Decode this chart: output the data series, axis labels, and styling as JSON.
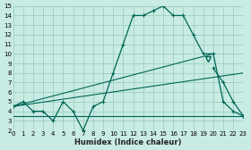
{
  "xlabel": "Humidex (Indice chaleur)",
  "bg_color": "#c8ebe4",
  "grid_color": "#9ecfbe",
  "line_color": "#006655",
  "xlim": [
    0,
    23
  ],
  "ylim": [
    2,
    15
  ],
  "xticks": [
    0,
    1,
    2,
    3,
    4,
    5,
    6,
    7,
    8,
    9,
    10,
    11,
    12,
    13,
    14,
    15,
    16,
    17,
    18,
    19,
    20,
    21,
    22,
    23
  ],
  "yticks": [
    2,
    3,
    4,
    5,
    6,
    7,
    8,
    9,
    10,
    11,
    12,
    13,
    14,
    15
  ],
  "main_line_x": [
    0,
    1,
    2,
    3,
    4,
    5,
    6,
    7,
    8,
    9,
    10,
    11,
    12,
    13,
    14,
    15,
    16,
    17,
    18,
    19,
    20,
    21,
    22,
    23
  ],
  "main_line_y": [
    4.5,
    5.0,
    4.0,
    4.0,
    3.0,
    5.0,
    4.0,
    2.0,
    4.5,
    5.0,
    8.0,
    11.0,
    14.0,
    14.0,
    14.5,
    15.0,
    14.0,
    14.0,
    12.0,
    10.0,
    10.0,
    5.0,
    4.0,
    3.5
  ],
  "diag_line1_x": [
    0,
    20
  ],
  "diag_line1_y": [
    4.5,
    10.0
  ],
  "diag_line2_x": [
    0,
    23
  ],
  "diag_line2_y": [
    4.5,
    8.0
  ],
  "flat_line_x": [
    0,
    1,
    2,
    3,
    4,
    5,
    6,
    7,
    8,
    9,
    10,
    11,
    12,
    13,
    14,
    15,
    16,
    17,
    18,
    19,
    20,
    21,
    22,
    23
  ],
  "flat_line_y": [
    3.5,
    3.5,
    3.5,
    3.5,
    3.5,
    3.5,
    3.5,
    3.5,
    3.5,
    3.5,
    3.5,
    3.5,
    3.5,
    3.5,
    3.5,
    3.5,
    3.5,
    3.5,
    3.5,
    3.5,
    3.5,
    3.5,
    3.5,
    3.5
  ],
  "right_line_x": [
    20,
    21,
    22,
    23
  ],
  "right_line_y": [
    8.5,
    7.0,
    5.0,
    3.5
  ],
  "triangle_x": [
    19.5
  ],
  "triangle_y": [
    9.5
  ]
}
